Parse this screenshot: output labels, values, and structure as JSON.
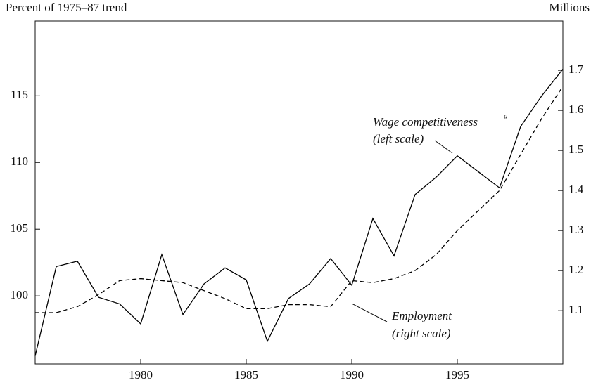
{
  "chart_data": {
    "type": "line",
    "y_label": "Percent of 1975–87 trend",
    "y2_label": "Millions",
    "x": [
      1975,
      1976,
      1977,
      1978,
      1979,
      1980,
      1981,
      1982,
      1983,
      1984,
      1985,
      1986,
      1987,
      1988,
      1989,
      1990,
      1991,
      1992,
      1993,
      1994,
      1995,
      1996,
      1997,
      1998,
      1999,
      2000
    ],
    "series": [
      {
        "name": "Wage competitiveness",
        "color": "#000000",
        "line_style": "solid",
        "values": [
          95.5,
          102.2,
          102.6,
          99.9,
          99.4,
          97.9,
          103.1,
          98.6,
          100.9,
          102.1,
          101.2,
          96.6,
          99.8,
          100.9,
          102.8,
          100.8,
          105.8,
          103.0,
          107.6,
          108.9,
          110.5,
          109.3,
          108.1,
          112.7,
          115.0,
          117.0
        ]
      },
      {
        "name": "Employment",
        "color": "#000000",
        "line_style": "dashed",
        "axis": "y2",
        "values": [
          1.095,
          1.095,
          1.11,
          1.14,
          1.175,
          1.18,
          1.175,
          1.17,
          1.15,
          1.13,
          1.105,
          1.105,
          1.115,
          1.115,
          1.11,
          1.175,
          1.17,
          1.18,
          1.2,
          1.24,
          1.3,
          1.35,
          1.4,
          1.49,
          1.58,
          1.66
        ]
      }
    ],
    "annotations": [
      {
        "text": "Wage competitiveness",
        "superscript": "a",
        "sub": "(left scale)"
      },
      {
        "text": "Employment",
        "sub": "(right scale)"
      }
    ],
    "xlim": [
      1975,
      2000
    ],
    "xticks": [
      1980,
      1985,
      1990,
      1995
    ],
    "ylim": [
      94.9,
      120.6
    ],
    "yticks": [
      100,
      105,
      110,
      115
    ],
    "y2lim": [
      0.967,
      1.823
    ],
    "y2ticks": [
      1.1,
      1.2,
      1.3,
      1.4,
      1.5,
      1.6,
      1.7
    ]
  }
}
